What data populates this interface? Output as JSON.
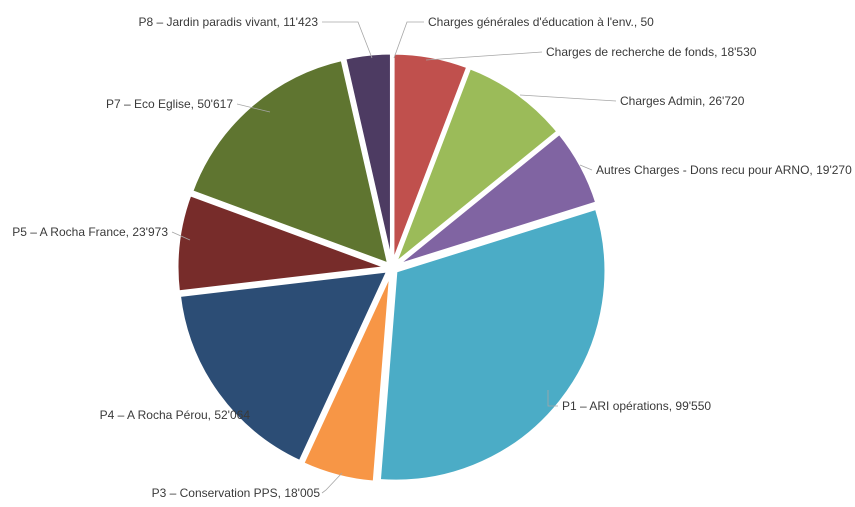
{
  "chart_data": {
    "type": "pie",
    "title": "",
    "legend": "none",
    "slices": [
      {
        "label": "Charges générales d'éducation à l'env.",
        "value_text": "50",
        "value": 50,
        "color": "#4472C4"
      },
      {
        "label": "Charges de recherche de fonds",
        "value_text": "18'530",
        "value": 18530,
        "color": "#C0504D"
      },
      {
        "label": "Charges Admin",
        "value_text": "26'720",
        "value": 26720,
        "color": "#9BBB59"
      },
      {
        "label": "Autres Charges - Dons recu pour ARNO",
        "value_text": "19'270",
        "value": 19270,
        "color": "#8064A2"
      },
      {
        "label": "P1 – ARI opérations",
        "value_text": "99'550",
        "value": 99550,
        "color": "#4BACC6"
      },
      {
        "label": "P3 – Conservation PPS",
        "value_text": "18'005",
        "value": 18005,
        "color": "#F79646"
      },
      {
        "label": "P4 – A Rocha Pérou",
        "value_text": "52'064",
        "value": 52064,
        "color": "#2C4D75"
      },
      {
        "label": "P5 – A Rocha France",
        "value_text": "23'973",
        "value": 23973,
        "color": "#772C2A"
      },
      {
        "label": "P7 – Eco Eglise",
        "value_text": "50'617",
        "value": 50617,
        "color": "#5F7530"
      },
      {
        "label": "P8 – Jardin paradis vivant",
        "value_text": "11'423",
        "value": 11423,
        "color": "#4D3B62"
      }
    ]
  }
}
